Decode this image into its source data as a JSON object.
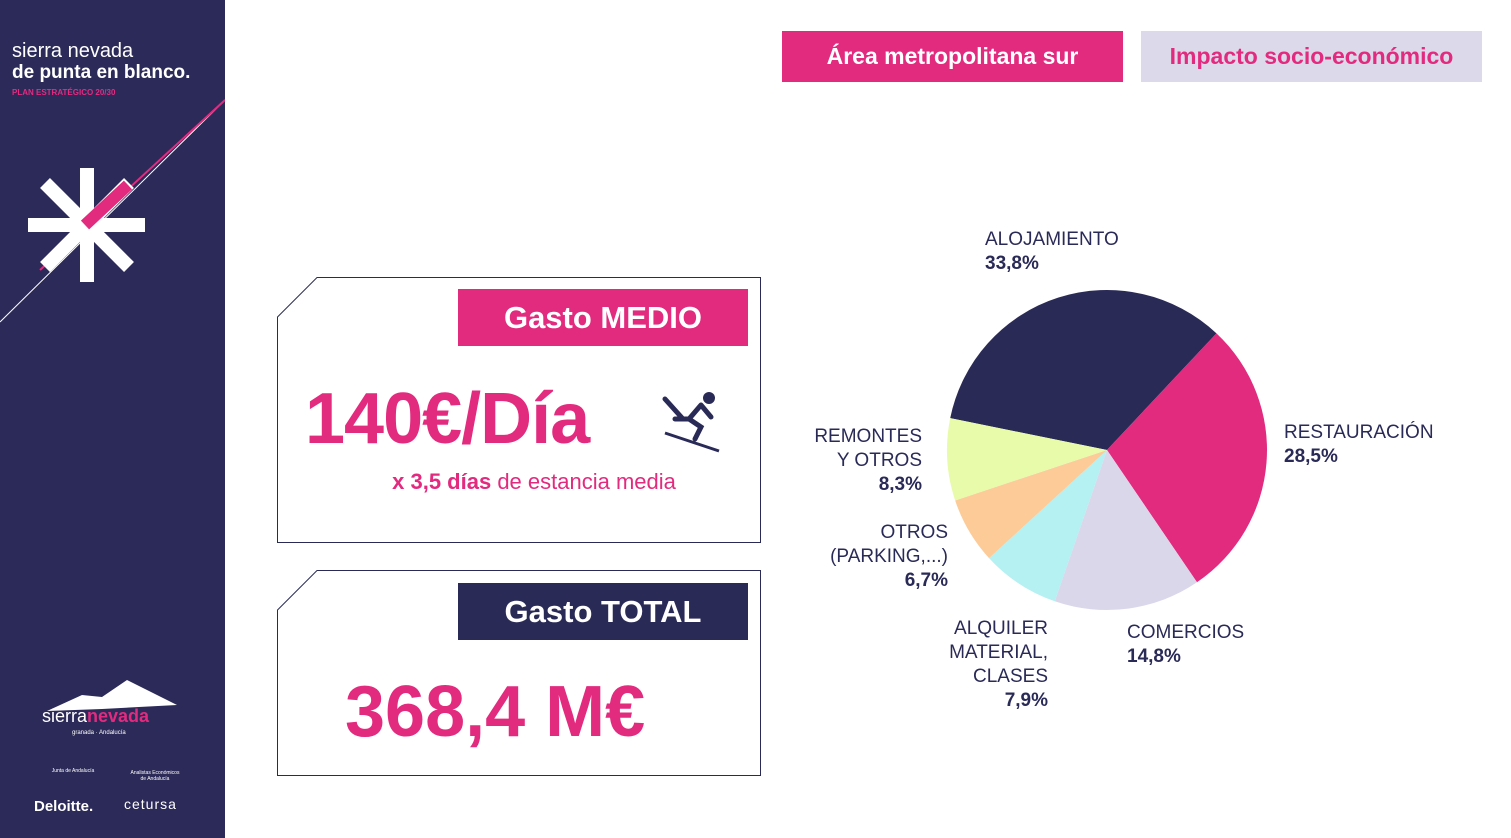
{
  "sidebar": {
    "brand_line1": "sierra nevada",
    "brand_line2": "de punta en blanco.",
    "brand_line3": "PLAN ESTRATÉGICO 20/30",
    "logos": {
      "sierra": "sierra",
      "nevada": "nevada",
      "sub": "granada · Andalucía",
      "junta": "Junta de Andalucía",
      "analistas": "Analistas Económicos de Andalucía",
      "deloitte": "Deloitte.",
      "cetursa": "cetursa"
    }
  },
  "header": {
    "tag_region": "Área metropolitana sur",
    "tag_topic": "Impacto socio-económico"
  },
  "gasto_medio": {
    "title": "Gasto MEDIO",
    "value": "140€/Día",
    "note_bold": "x 3,5 días",
    "note_rest": " de estancia media",
    "icon": "skier-icon"
  },
  "gasto_total": {
    "title": "Gasto TOTAL",
    "value": "368,4 M€"
  },
  "colors": {
    "navy": "#2a2a57",
    "pink": "#e22a7f"
  },
  "chart_data": {
    "type": "pie",
    "title": "",
    "slices": [
      {
        "label": "ALOJAMIENTO",
        "value": 33.8,
        "display": "33,8%",
        "color": "#2a2a57"
      },
      {
        "label": "RESTAURACIÓN",
        "value": 28.5,
        "display": "28,5%",
        "color": "#e22a7f"
      },
      {
        "label": "COMERCIOS",
        "value": 14.8,
        "display": "14,8%",
        "color": "#dad7ea"
      },
      {
        "label": "ALQUILER MATERIAL, CLASES",
        "value": 7.9,
        "display": "7,9%",
        "color": "#b5f0f2"
      },
      {
        "label": "OTROS (PARKING,...)",
        "value": 6.7,
        "display": "6,7%",
        "color": "#fdcb97"
      },
      {
        "label": "REMONTES Y OTROS",
        "value": 8.3,
        "display": "8,3%",
        "color": "#e8fbab"
      }
    ]
  }
}
